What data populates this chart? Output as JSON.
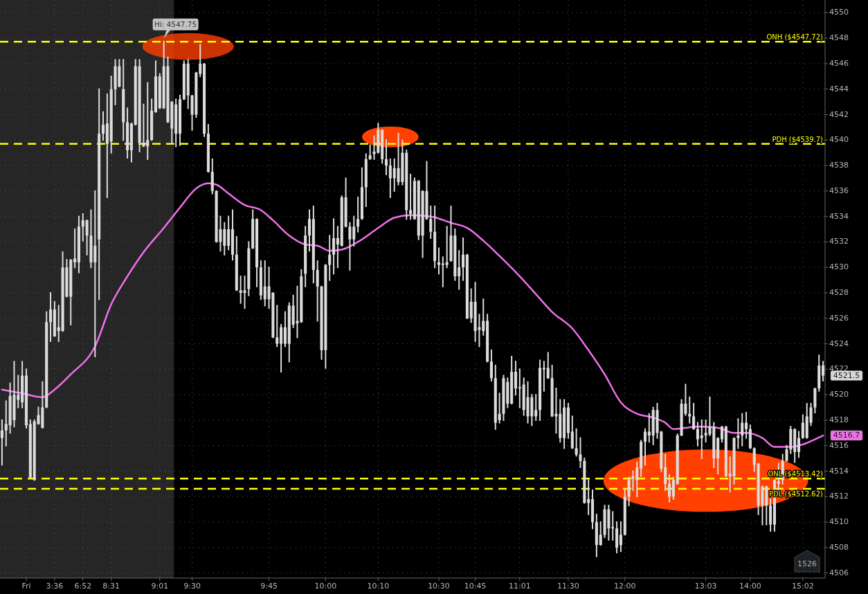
{
  "chart_data": {
    "type": "candlestick",
    "color": "#dcdcdc",
    "categories": [
      null,
      null,
      null,
      null,
      null,
      null,
      "Fri",
      null,
      null,
      null,
      null,
      null,
      null,
      "3:36",
      null,
      null,
      null,
      null,
      null,
      null,
      "6:52",
      null,
      null,
      null,
      null,
      null,
      null,
      "8:31",
      null,
      null,
      null,
      null,
      null,
      null,
      null,
      null,
      null,
      null,
      null,
      "9:01",
      null,
      null,
      null,
      null,
      null,
      null,
      null,
      "9:30",
      null,
      null,
      null,
      null,
      null,
      null,
      null,
      null,
      null,
      null,
      null,
      null,
      null,
      null,
      null,
      null,
      null,
      null,
      "9:45",
      null,
      null,
      null,
      null,
      null,
      null,
      null,
      null,
      null,
      null,
      null,
      null,
      null,
      "10:00",
      null,
      null,
      null,
      null,
      null,
      null,
      null,
      null,
      null,
      null,
      null,
      null,
      "10:10",
      null,
      null,
      null,
      null,
      null,
      null,
      null,
      null,
      null,
      null,
      null,
      null,
      null,
      null,
      "10:30",
      null,
      null,
      null,
      null,
      null,
      null,
      null,
      null,
      "10:45",
      null,
      null,
      null,
      null,
      null,
      null,
      null,
      null,
      null,
      null,
      "11:01",
      null,
      null,
      null,
      null,
      null,
      null,
      null,
      null,
      null,
      null,
      null,
      "11:30",
      null,
      null,
      null,
      null,
      null,
      null,
      null,
      null,
      null,
      null,
      null,
      null,
      null,
      "12:00",
      null,
      null,
      null,
      null,
      null,
      null,
      null,
      null,
      null,
      null,
      null,
      null,
      null,
      null,
      null,
      null,
      null,
      null,
      null,
      "13:03",
      null,
      null,
      null,
      null,
      null,
      null,
      null,
      null,
      null,
      null,
      "14:00",
      null,
      null,
      null,
      null,
      null,
      null,
      null,
      null,
      null,
      null,
      null,
      null,
      "15:02",
      null,
      null,
      null,
      null,
      null
    ],
    "ohlc": [
      [
        4516.6,
        4518,
        4514.5,
        4517.2
      ],
      [
        4517.2,
        4519.5,
        4516,
        4517.7
      ],
      [
        4517.6,
        4520.9,
        4517,
        4519.9
      ],
      [
        4518,
        4522.6,
        4517.5,
        4520
      ],
      [
        4519.6,
        4521.5,
        4519,
        4520
      ],
      [
        4519.4,
        4522.6,
        4519,
        4521.5
      ],
      [
        4517.6,
        4522,
        4517.4,
        4521.5
      ],
      [
        4513.5,
        4518,
        4513.5,
        4517.7
      ],
      [
        4513.3,
        4518,
        4513.3,
        4517.9
      ],
      [
        4517.7,
        4519,
        4517.7,
        4518.4
      ],
      [
        4517.4,
        4521,
        4517.4,
        4519
      ],
      [
        4519,
        4526.5,
        4519,
        4525.7
      ],
      [
        4525.7,
        4528,
        4524.2,
        4526.7
      ],
      [
        4524.6,
        4527.3,
        4524.6,
        4526.7
      ],
      [
        4525,
        4527,
        4524.2,
        4525.3
      ],
      [
        4525,
        4531.2,
        4525,
        4530
      ],
      [
        4527.7,
        4530.6,
        4527.7,
        4530
      ],
      [
        4527.7,
        4530.6,
        4525.5,
        4530.6
      ],
      [
        4530.4,
        4533,
        4530,
        4530.7
      ],
      [
        4530.4,
        4534,
        4529.6,
        4533.2
      ],
      [
        4533.2,
        4534.2,
        4532.1,
        4533.7
      ],
      [
        4532.5,
        4533.7,
        4531,
        4533.7
      ],
      [
        4530.4,
        4534.5,
        4530,
        4532.5
      ],
      [
        4530.4,
        4536,
        4523,
        4531.7
      ],
      [
        4532.2,
        4544,
        4527.5,
        4540.5
      ],
      [
        4540.5,
        4542.2,
        4540,
        4541.2
      ],
      [
        4539.7,
        4543.6,
        4535.5,
        4541.3
      ],
      [
        4539.9,
        4545,
        4539,
        4544
      ],
      [
        4544,
        4546.3,
        4542.8,
        4545.8
      ],
      [
        4544.2,
        4546.3,
        4544.2,
        4545.8
      ],
      [
        4541.4,
        4546.3,
        4540,
        4544
      ],
      [
        4539.2,
        4542.5,
        4538.6,
        4541.4
      ],
      [
        4539.2,
        4541.3,
        4538.3,
        4541.3
      ],
      [
        4541.2,
        4546.3,
        4541.2,
        4545.8
      ],
      [
        4539.8,
        4546.3,
        4539.1,
        4545.8
      ],
      [
        4539.5,
        4542.8,
        4539.5,
        4539.8
      ],
      [
        4539.5,
        4544.5,
        4538.5,
        4540
      ],
      [
        4540,
        4543.2,
        4540,
        4542.3
      ],
      [
        4542.2,
        4546.2,
        4542.2,
        4545
      ],
      [
        4542.5,
        4545.2,
        4542.5,
        4545
      ],
      [
        4542.5,
        4547.75,
        4542.5,
        4545.8
      ],
      [
        4541.4,
        4546.5,
        4541.4,
        4545.8
      ],
      [
        4540.9,
        4543,
        4539.7,
        4543
      ],
      [
        4540.5,
        4543.2,
        4539.5,
        4542.8
      ],
      [
        4540.5,
        4543.5,
        4539.6,
        4543.2
      ],
      [
        4543.2,
        4546.2,
        4543.2,
        4546
      ],
      [
        4543.5,
        4546.3,
        4542.5,
        4546
      ],
      [
        4542,
        4543.5,
        4540.8,
        4543.5
      ],
      [
        4542,
        4545.3,
        4541.8,
        4545.3
      ],
      [
        4545.2,
        4547.5,
        4545,
        4546
      ],
      [
        4540.5,
        4546,
        4540.3,
        4546
      ],
      [
        4537.5,
        4541.2,
        4537.5,
        4540.5
      ],
      [
        4536,
        4538.5,
        4535.8,
        4537.5
      ],
      [
        4532,
        4536,
        4532,
        4536
      ],
      [
        4532,
        4534,
        4531.3,
        4533
      ],
      [
        4531.7,
        4533.5,
        4531,
        4533
      ],
      [
        4531.7,
        4534,
        4531.4,
        4533
      ],
      [
        4531,
        4534.5,
        4530.6,
        4533
      ],
      [
        4528.2,
        4532.4,
        4528.2,
        4531
      ],
      [
        4528,
        4529.3,
        4527.2,
        4528.2
      ],
      [
        4528,
        4529.3,
        4526.8,
        4528.2
      ],
      [
        4528.3,
        4532,
        4527.8,
        4531.5
      ],
      [
        4531.5,
        4534.5,
        4531.5,
        4533.8
      ],
      [
        4530,
        4533.8,
        4528.5,
        4533.8
      ],
      [
        4527.8,
        4530.5,
        4527.5,
        4530
      ],
      [
        4527.5,
        4530.5,
        4527,
        4528.5
      ],
      [
        4527.5,
        4530,
        4526.8,
        4528.5
      ],
      [
        4524.5,
        4528,
        4524.5,
        4528
      ],
      [
        4524,
        4527,
        4523.8,
        4524.5
      ],
      [
        4524,
        4525.5,
        4521.8,
        4525.3
      ],
      [
        4524,
        4526.5,
        4523.8,
        4525.3
      ],
      [
        4524,
        4527.2,
        4522.6,
        4527
      ],
      [
        4525.5,
        4527.8,
        4525.3,
        4527
      ],
      [
        4525.6,
        4528.5,
        4524.5,
        4525.8
      ],
      [
        4525.7,
        4529.8,
        4525.7,
        4529.3
      ],
      [
        4529.5,
        4533.2,
        4528.5,
        4532.5
      ],
      [
        4532.5,
        4534.5,
        4531.3,
        4533.8
      ],
      [
        4529.8,
        4534.8,
        4528.8,
        4533.8
      ],
      [
        4528.5,
        4530.5,
        4525.8,
        4529.8
      ],
      [
        4523.5,
        4528.5,
        4522.8,
        4528.5
      ],
      [
        4523.5,
        4530.2,
        4522.1,
        4530.2
      ],
      [
        4530.2,
        4532.5,
        4529,
        4531
      ],
      [
        4531,
        4533.8,
        4529.5,
        4532.3
      ],
      [
        4531.8,
        4533.2,
        4530,
        4532.3
      ],
      [
        4531.7,
        4535.6,
        4531.7,
        4535.5
      ],
      [
        4533.2,
        4537,
        4533.2,
        4535.5
      ],
      [
        4532.2,
        4533.5,
        4529.8,
        4533.2
      ],
      [
        4532.2,
        4534,
        4531.7,
        4533.2
      ],
      [
        4533.2,
        4535.5,
        4532.8,
        4533.8
      ],
      [
        4533.8,
        4537.8,
        4533.8,
        4536.3
      ],
      [
        4536.3,
        4538.9,
        4534.8,
        4538.5
      ],
      [
        4538.5,
        4539.6,
        4538.5,
        4538.8
      ],
      [
        4538.9,
        4540.3,
        4538.5,
        4539.1
      ],
      [
        4539,
        4541.3,
        4539,
        4540.8
      ],
      [
        4538.5,
        4540.8,
        4538.2,
        4540.8
      ],
      [
        4538,
        4540,
        4537.3,
        4538.5
      ],
      [
        4537,
        4538.5,
        4535.5,
        4538
      ],
      [
        4537,
        4538.5,
        4536,
        4537.8
      ],
      [
        4536.7,
        4540.5,
        4536.5,
        4537.8
      ],
      [
        4536.7,
        4540,
        4536.5,
        4539
      ],
      [
        4534.5,
        4539.2,
        4533.8,
        4539
      ],
      [
        4534.2,
        4537.3,
        4533.8,
        4534.5
      ],
      [
        4533.8,
        4537,
        4533.8,
        4536.8
      ],
      [
        4532.5,
        4536.8,
        4532.2,
        4536.8
      ],
      [
        4532.5,
        4536,
        4530.8,
        4536
      ],
      [
        4533.8,
        4538.3,
        4533.8,
        4536
      ],
      [
        4532.8,
        4534.8,
        4532.3,
        4533.8
      ],
      [
        4530.5,
        4534.8,
        4530,
        4532.8
      ],
      [
        4530.2,
        4531.5,
        4529.5,
        4530.4
      ],
      [
        4530.2,
        4530.8,
        4528.5,
        4530.3
      ],
      [
        4530.2,
        4533.2,
        4530,
        4530.4
      ],
      [
        4530.5,
        4534.8,
        4530.5,
        4532.5
      ],
      [
        4529.3,
        4533,
        4529,
        4532.5
      ],
      [
        4529.3,
        4531.3,
        4528.3,
        4530
      ],
      [
        4530,
        4532.3,
        4529,
        4531
      ],
      [
        4526,
        4531,
        4526,
        4531
      ],
      [
        4526,
        4528.3,
        4525.7,
        4527.3
      ],
      [
        4525,
        4528.8,
        4524.2,
        4527.3
      ],
      [
        4525.1,
        4526.3,
        4523.8,
        4525.3
      ],
      [
        4525,
        4527.5,
        4524.7,
        4525.8
      ],
      [
        4522.6,
        4526.3,
        4522.6,
        4525.8
      ],
      [
        4521.3,
        4523.5,
        4521.1,
        4522.6
      ],
      [
        4517.8,
        4522.3,
        4517.3,
        4521.3
      ],
      [
        4518,
        4520.1,
        4517.8,
        4518.5
      ],
      [
        4518.5,
        4521.5,
        4518,
        4521.3
      ],
      [
        4519.3,
        4521.3,
        4519,
        4521
      ],
      [
        4519.3,
        4523,
        4519.3,
        4521.8
      ],
      [
        4520.5,
        4522.6,
        4520,
        4521.8
      ],
      [
        4520.5,
        4522,
        4519,
        4520.6
      ],
      [
        4518.8,
        4521.3,
        4518.4,
        4520.8
      ],
      [
        4518.3,
        4521,
        4517.8,
        4519.8
      ],
      [
        4518.3,
        4520,
        4517.6,
        4519.8
      ],
      [
        4518.3,
        4520,
        4518,
        4518.8
      ],
      [
        4518.8,
        4522.7,
        4518,
        4522.1
      ],
      [
        4522,
        4522.6,
        4520.3,
        4522.1
      ],
      [
        4521.3,
        4523.3,
        4521.3,
        4522.1
      ],
      [
        4518.3,
        4522.3,
        4518.3,
        4521.3
      ],
      [
        4518.3,
        4520.5,
        4517,
        4518.5
      ],
      [
        4516.6,
        4519.6,
        4516.3,
        4518.5
      ],
      [
        4516.6,
        4519.6,
        4515.8,
        4519
      ],
      [
        4517,
        4519.3,
        4516.6,
        4519
      ],
      [
        4515.8,
        4518.3,
        4515.8,
        4517.1
      ],
      [
        4515.3,
        4517.3,
        4515.2,
        4515.8
      ],
      [
        4514.8,
        4516.6,
        4514.3,
        4515.3
      ],
      [
        4511.5,
        4515,
        4511.5,
        4514.8
      ],
      [
        4511.5,
        4513.3,
        4510.6,
        4511.8
      ],
      [
        4510,
        4512.5,
        4509.5,
        4511.8
      ],
      [
        4508.2,
        4510.6,
        4507.3,
        4510
      ],
      [
        4508.2,
        4510,
        4508.2,
        4509
      ],
      [
        4509,
        4511.3,
        4508.8,
        4511
      ],
      [
        4509.5,
        4511.3,
        4508.6,
        4511
      ],
      [
        4509.5,
        4510.8,
        4508.6,
        4509.6
      ],
      [
        4508,
        4510,
        4507.6,
        4509.5
      ],
      [
        4508.2,
        4510,
        4507.7,
        4509
      ],
      [
        4509,
        4512.5,
        4509,
        4512
      ],
      [
        4512,
        4513.5,
        4511.3,
        4513.3
      ],
      [
        4513.4,
        4514,
        4512.5,
        4513.6
      ],
      [
        4513.3,
        4514.7,
        4512,
        4514.3
      ],
      [
        4514.2,
        4516.4,
        4513.6,
        4516.3
      ],
      [
        4516.3,
        4517.3,
        4514.5,
        4517.1
      ],
      [
        4516.8,
        4518.5,
        4516.3,
        4517.1
      ],
      [
        4516.8,
        4519,
        4516.1,
        4518.8
      ],
      [
        4517,
        4519.3,
        4516.6,
        4518.8
      ],
      [
        4514.2,
        4517.1,
        4514,
        4517.1
      ],
      [
        4513,
        4515.3,
        4512.5,
        4514.3
      ],
      [
        4512,
        4513.7,
        4511.6,
        4513
      ],
      [
        4512,
        4513.5,
        4511.8,
        4513.3
      ],
      [
        4513,
        4516.9,
        4513,
        4516.8
      ],
      [
        4516.8,
        4519.6,
        4516.8,
        4519.3
      ],
      [
        4518.5,
        4520.8,
        4518.4,
        4519.3
      ],
      [
        4518.3,
        4519.8,
        4517.8,
        4518.5
      ],
      [
        4517.3,
        4519.3,
        4517.3,
        4518.3
      ],
      [
        4516.5,
        4517.8,
        4516,
        4517.3
      ],
      [
        4516.6,
        4518,
        4515,
        4516.8
      ],
      [
        4516.8,
        4518,
        4516.3,
        4517
      ],
      [
        4516.9,
        4519.8,
        4516.8,
        4517.5
      ],
      [
        4515,
        4517.8,
        4514.3,
        4517.5
      ],
      [
        4515,
        4516.6,
        4513.8,
        4516.6
      ],
      [
        4516.5,
        4517.5,
        4516.3,
        4517.5
      ],
      [
        4513.6,
        4517.5,
        4513.6,
        4517.5
      ],
      [
        4513.6,
        4515.1,
        4512.4,
        4513.8
      ],
      [
        4513.6,
        4516.6,
        4513,
        4516.6
      ],
      [
        4516.6,
        4518.1,
        4515.8,
        4516.8
      ],
      [
        4516.8,
        4518.5,
        4516,
        4517.8
      ],
      [
        4517.3,
        4518.6,
        4516.6,
        4517.8
      ],
      [
        4515.8,
        4517.6,
        4515.8,
        4517.3
      ],
      [
        4514.5,
        4515.8,
        4514,
        4515.8
      ],
      [
        4511.3,
        4514.6,
        4510.6,
        4514.6
      ],
      [
        4511.3,
        4512.8,
        4509.8,
        4512.8
      ],
      [
        4511.3,
        4512.8,
        4509.8,
        4512.8
      ],
      [
        4509.8,
        4511.8,
        4509.3,
        4511.3
      ],
      [
        4509.8,
        4513.3,
        4509.3,
        4513.3
      ],
      [
        4513,
        4514.6,
        4512.4,
        4513.2
      ],
      [
        4513.3,
        4515.3,
        4513,
        4514.8
      ],
      [
        4514.8,
        4516,
        4514.8,
        4515.7
      ],
      [
        4515.7,
        4517.5,
        4515.4,
        4517.3
      ],
      [
        4515.5,
        4517.3,
        4514.7,
        4517.3
      ],
      [
        4515.5,
        4517.1,
        4515.1,
        4516.6
      ],
      [
        4516.6,
        4518.4,
        4516.6,
        4517.8
      ],
      [
        4516.6,
        4519.3,
        4516.6,
        4518.3
      ],
      [
        4517.8,
        4519.3,
        4517.6,
        4519
      ],
      [
        4519,
        4520.5,
        4518.6,
        4520.5
      ],
      [
        4520.5,
        4523.1,
        4520.3,
        4522.3
      ],
      [
        4521.5,
        4522.6,
        4521.1,
        4522.3
      ]
    ],
    "series": [
      {
        "type": "line",
        "color": "#f070ea",
        "values": [
          4520.4,
          null,
          null,
          null,
          null,
          4520.1,
          null,
          null,
          null,
          null,
          4519.8,
          null,
          null,
          4520.4,
          null,
          null,
          null,
          4521.6,
          null,
          null,
          null,
          null,
          null,
          4523.8,
          null,
          null,
          null,
          4527.1,
          null,
          null,
          null,
          4529.3,
          null,
          null,
          null,
          4531.2,
          null,
          null,
          null,
          null,
          4533.1,
          null,
          null,
          null,
          4534.7,
          null,
          null,
          null,
          4536.2,
          null,
          null,
          4536.6,
          null,
          4536.5,
          null,
          null,
          4535.8,
          null,
          null,
          null,
          4534.9,
          null,
          null,
          null,
          4534.5,
          null,
          null,
          4533.7,
          null,
          null,
          null,
          4532.5,
          null,
          null,
          null,
          4531.8,
          null,
          null,
          4531.7,
          null,
          null,
          4531.3,
          null,
          null,
          4531.4,
          null,
          null,
          null,
          4532,
          null,
          null,
          null,
          null,
          4533.1,
          null,
          null,
          null,
          4533.9,
          null,
          null,
          null,
          4534.1,
          null,
          null,
          null,
          null,
          4534,
          null,
          null,
          null,
          null,
          4533.5,
          null,
          null,
          null,
          4533.1,
          null,
          null,
          null,
          4532.1,
          null,
          null,
          null,
          4530.9,
          null,
          null,
          null,
          null,
          4529.3,
          null,
          null,
          null,
          4527.9,
          null,
          null,
          null,
          4526.5,
          null,
          null,
          null,
          null,
          4525.2,
          null,
          null,
          null,
          4523.5,
          null,
          null,
          null,
          4521.6,
          null,
          null,
          null,
          4519.4,
          null,
          null,
          null,
          4518.5,
          null,
          null,
          null,
          4518.2,
          null,
          null,
          4517.8,
          null,
          4517.3,
          null,
          null,
          4517.4,
          null,
          null,
          4517.5,
          null,
          null,
          null,
          null,
          4517.4,
          null,
          null,
          null,
          4517,
          null,
          null,
          4517,
          null,
          null,
          null,
          4516.6,
          null,
          null,
          4515.9,
          null,
          null,
          null,
          4515.9,
          null,
          null,
          4516.1,
          null,
          null,
          4516.5,
          null,
          4516.8
        ]
      }
    ],
    "ylim": [
      4505.6,
      4551
    ],
    "yticks": [
      4506,
      4508,
      4510,
      4512,
      4514,
      4516,
      4518,
      4520,
      4522,
      4524,
      4526,
      4528,
      4530,
      4532,
      4534,
      4536,
      4538,
      4540,
      4542,
      4544,
      4546,
      4548,
      4550
    ],
    "grid": true,
    "ref_lines": [
      {
        "axis": "y",
        "value": 4547.72,
        "label": "ONH ($4547.72)",
        "color": "#ffff00",
        "line_style": "dashed"
      },
      {
        "axis": "y",
        "value": 4539.7,
        "label": "PDH ($4539.7)",
        "color": "#ffff00",
        "line_style": "dashed"
      },
      {
        "axis": "y",
        "value": 4513.42,
        "label": "ONL ($4513.42)",
        "color": "#ffff00",
        "line_style": "dashed"
      },
      {
        "axis": "y",
        "value": 4512.62,
        "label": "PDL ($4512.62)",
        "color": "#ffff00",
        "line_style": "dashed"
      }
    ],
    "annotations": [
      {
        "text": "Hi: 4547.75",
        "y": 4547.75
      },
      "4521.5",
      "4516.7",
      "1526"
    ]
  }
}
